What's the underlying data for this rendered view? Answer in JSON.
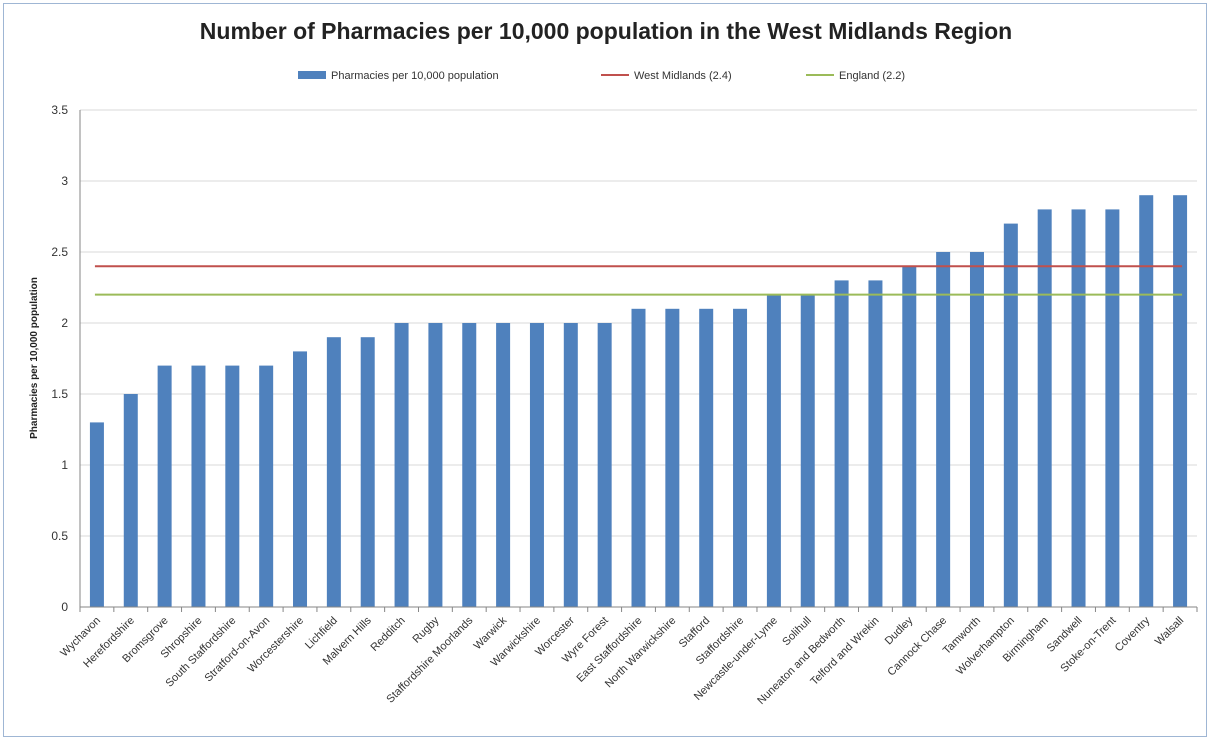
{
  "colors": {
    "bar": "#4f81bd",
    "west_midlands_line": "#c0504d",
    "england_line": "#9bbb59",
    "grid": "#d9d9d9",
    "axis": "#868686"
  },
  "chart_data": {
    "type": "bar",
    "title": "Number of Pharmacies per 10,000 population in the West Midlands Region",
    "xlabel": "",
    "ylabel": "Pharmacies per 10,000 population",
    "ylim": [
      0,
      3.5
    ],
    "yticks": [
      0,
      0.5,
      1,
      1.5,
      2,
      2.5,
      3,
      3.5
    ],
    "ytick_labels": [
      "0",
      "0.5",
      "1",
      "1.5",
      "2",
      "2.5",
      "3",
      "3.5"
    ],
    "grid": true,
    "legend_position": "top",
    "categories": [
      "Wychavon",
      "Herefordshire",
      "Bromsgrove",
      "Shropshire",
      "South Staffordshire",
      "Stratford-on-Avon",
      "Worcestershire",
      "Lichfield",
      "Malvern Hills",
      "Redditch",
      "Rugby",
      "Staffordshire Moorlands",
      "Warwick",
      "Warwickshire",
      "Worcester",
      "Wyre Forest",
      "East Staffordshire",
      "North Warwickshire",
      "Stafford",
      "Staffordshire",
      "Newcastle-under-Lyme",
      "Solihull",
      "Nuneaton and Bedworth",
      "Telford and Wrekin",
      "Dudley",
      "Cannock Chase",
      "Tamworth",
      "Wolverhampton",
      "Birmingham",
      "Sandwell",
      "Stoke-on-Trent",
      "Coventry",
      "Walsall"
    ],
    "series": [
      {
        "name": "Pharmacies per 10,000 population",
        "type": "bar",
        "values": [
          1.3,
          1.5,
          1.7,
          1.7,
          1.7,
          1.7,
          1.8,
          1.9,
          1.9,
          2.0,
          2.0,
          2.0,
          2.0,
          2.0,
          2.0,
          2.0,
          2.1,
          2.1,
          2.1,
          2.1,
          2.2,
          2.2,
          2.3,
          2.3,
          2.4,
          2.5,
          2.5,
          2.7,
          2.8,
          2.8,
          2.8,
          2.9,
          2.9
        ]
      },
      {
        "name": "West Midlands (2.4)",
        "type": "line",
        "value": 2.4
      },
      {
        "name": "England (2.2)",
        "type": "line",
        "value": 2.2
      }
    ]
  }
}
